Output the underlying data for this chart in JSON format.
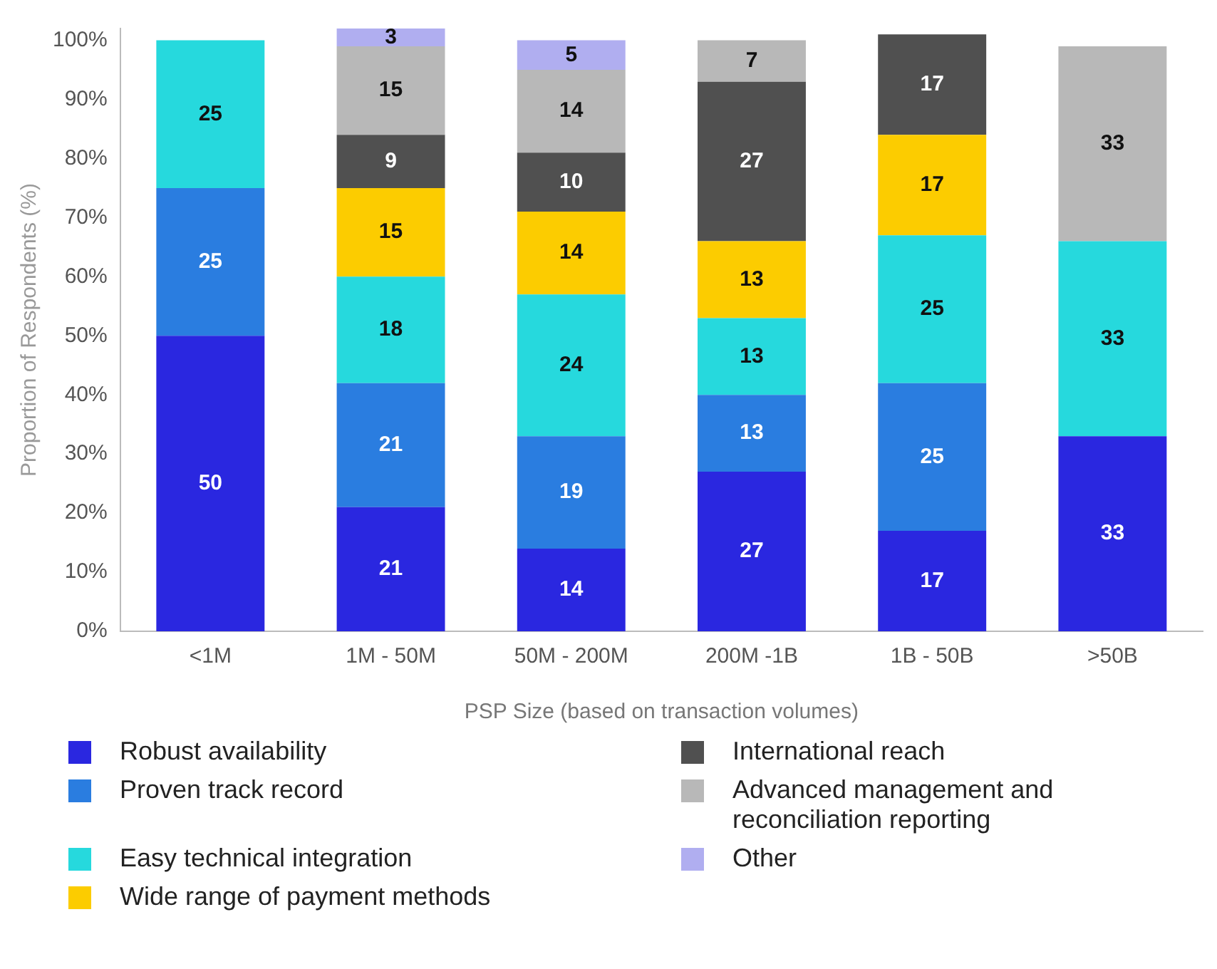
{
  "chart_data": {
    "type": "bar",
    "stacked": true,
    "xlabel": "PSP Size (based on transaction volumes)",
    "ylabel": "Proportion of Respondents (%)",
    "categories": [
      "<1M",
      "1M - 50M",
      "50M - 200M",
      "200M -1B",
      "1B - 50B",
      ">50B"
    ],
    "ylim": [
      0,
      102
    ],
    "yticks": [
      {
        "value": 0,
        "label": "0%"
      },
      {
        "value": 10,
        "label": "10%"
      },
      {
        "value": 20,
        "label": "20%"
      },
      {
        "value": 30,
        "label": "30%"
      },
      {
        "value": 40,
        "label": "40%"
      },
      {
        "value": 50,
        "label": "50%"
      },
      {
        "value": 60,
        "label": "60%"
      },
      {
        "value": 70,
        "label": "70%"
      },
      {
        "value": 80,
        "label": "80%"
      },
      {
        "value": 90,
        "label": "90%"
      },
      {
        "value": 100,
        "label": "100%"
      }
    ],
    "grid": false,
    "legend": "bottom",
    "data_labels": true,
    "series": [
      {
        "name": "Robust availability",
        "color": "#2a27e0",
        "values": [
          50,
          21,
          14,
          27,
          17,
          33
        ]
      },
      {
        "name": "Proven track record",
        "color": "#2a7de0",
        "values": [
          25,
          21,
          19,
          13,
          25,
          null
        ]
      },
      {
        "name": "Easy technical integration",
        "color": "#26d9dd",
        "values": [
          25,
          18,
          24,
          13,
          25,
          33
        ]
      },
      {
        "name": "Wide range of payment methods",
        "color": "#fccc00",
        "values": [
          null,
          15,
          14,
          13,
          17,
          null
        ]
      },
      {
        "name": "International reach",
        "color": "#505050",
        "values": [
          null,
          9,
          10,
          27,
          17,
          null
        ]
      },
      {
        "name": "Advanced management and reconciliation reporting",
        "color": "#b8b8b8",
        "values": [
          null,
          15,
          14,
          7,
          null,
          33
        ]
      },
      {
        "name": "Other",
        "color": "#b0aef0",
        "values": [
          null,
          3,
          5,
          null,
          null,
          null
        ]
      }
    ]
  }
}
